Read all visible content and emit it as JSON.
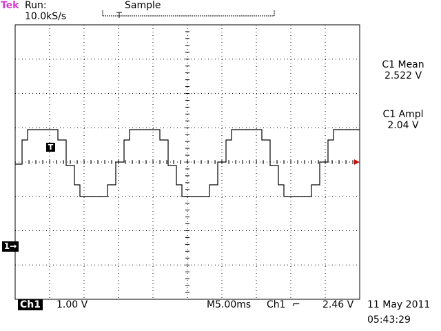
{
  "header": {
    "brand": "Tek",
    "acquisition": "Run: 10.0kS/s",
    "mode": "Sample"
  },
  "measurements": [
    {
      "label": "C1 Mean",
      "value": "2.522 V"
    },
    {
      "label": "C1 Ampl",
      "value": "2.04 V"
    }
  ],
  "channel_marker": "1→",
  "trigger_marker": "T",
  "footer": {
    "channel": "Ch1",
    "volts_per_div": "1.00 V",
    "timebase": "M5.00ms",
    "trigger_source": "Ch1",
    "trigger_slope": "⌐",
    "trigger_level": "2.46 V",
    "date": "11 May 2011",
    "time": "05:43:29"
  },
  "colors": {
    "brand": "#d63ad6",
    "trace": "#000000",
    "grid": "#000000",
    "trigger_level_marker": "#c01010"
  }
}
